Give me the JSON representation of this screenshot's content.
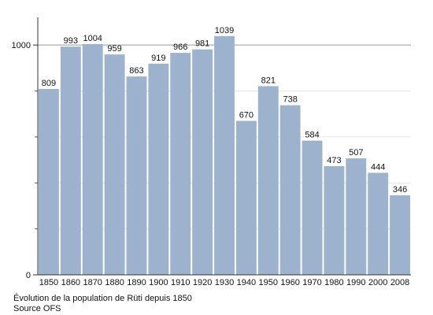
{
  "chart_data": {
    "type": "bar",
    "categories": [
      "1850",
      "1860",
      "1870",
      "1880",
      "1890",
      "1900",
      "1910",
      "1920",
      "1930",
      "1940",
      "1950",
      "1960",
      "1970",
      "1980",
      "1990",
      "2000",
      "2008"
    ],
    "values": [
      809,
      993,
      1004,
      959,
      863,
      919,
      966,
      981,
      1039,
      670,
      821,
      738,
      584,
      473,
      507,
      444,
      346
    ],
    "ylim": [
      0,
      1100
    ],
    "y_ticks": [
      0,
      1000
    ],
    "grid": true,
    "bar_color": "#9db2cc",
    "caption_line1": "Évolution de la population de Rüti depuis 1850",
    "caption_line2": "Source OFS"
  }
}
